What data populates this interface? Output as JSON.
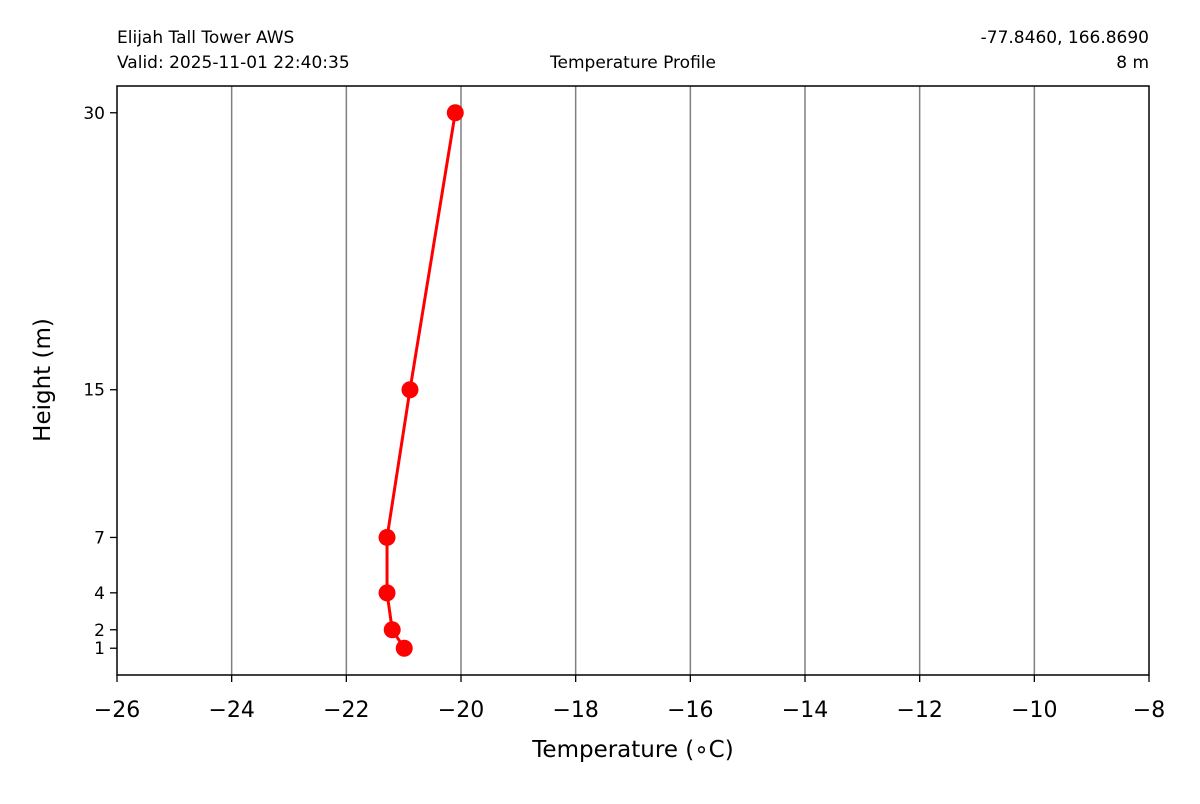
{
  "header": {
    "station": "Elijah Tall Tower AWS",
    "valid": "Valid: 2025-11-01 22:40:35",
    "title": "Temperature Profile",
    "coords": "-77.8460, 166.8690",
    "elevation": "8 m"
  },
  "colors": {
    "line": "#ff0000",
    "grid": "#808080"
  },
  "chart_data": {
    "type": "line",
    "title": "Temperature Profile",
    "xlabel": "Temperature (∘C)",
    "ylabel": "Height (m)",
    "xlim": [
      -26,
      -8
    ],
    "ylim": [
      -0.45,
      31.45
    ],
    "xticks": [
      -26,
      -24,
      -22,
      -20,
      -18,
      -16,
      -14,
      -12,
      -10,
      -8
    ],
    "xtick_labels": [
      "−26",
      "−24",
      "−22",
      "−20",
      "−18",
      "−16",
      "−14",
      "−12",
      "−10",
      "−8"
    ],
    "yticks": [
      1,
      2,
      4,
      7,
      15,
      30
    ],
    "ytick_labels": [
      "1",
      "2",
      "4",
      "7",
      "15",
      "30"
    ],
    "grid": "vertical",
    "series": [
      {
        "name": "Temperature",
        "height": [
          1,
          2,
          4,
          7,
          15,
          30
        ],
        "temperature": [
          -20.99,
          -21.2,
          -21.29,
          -21.29,
          -20.89,
          -20.1
        ]
      }
    ]
  }
}
